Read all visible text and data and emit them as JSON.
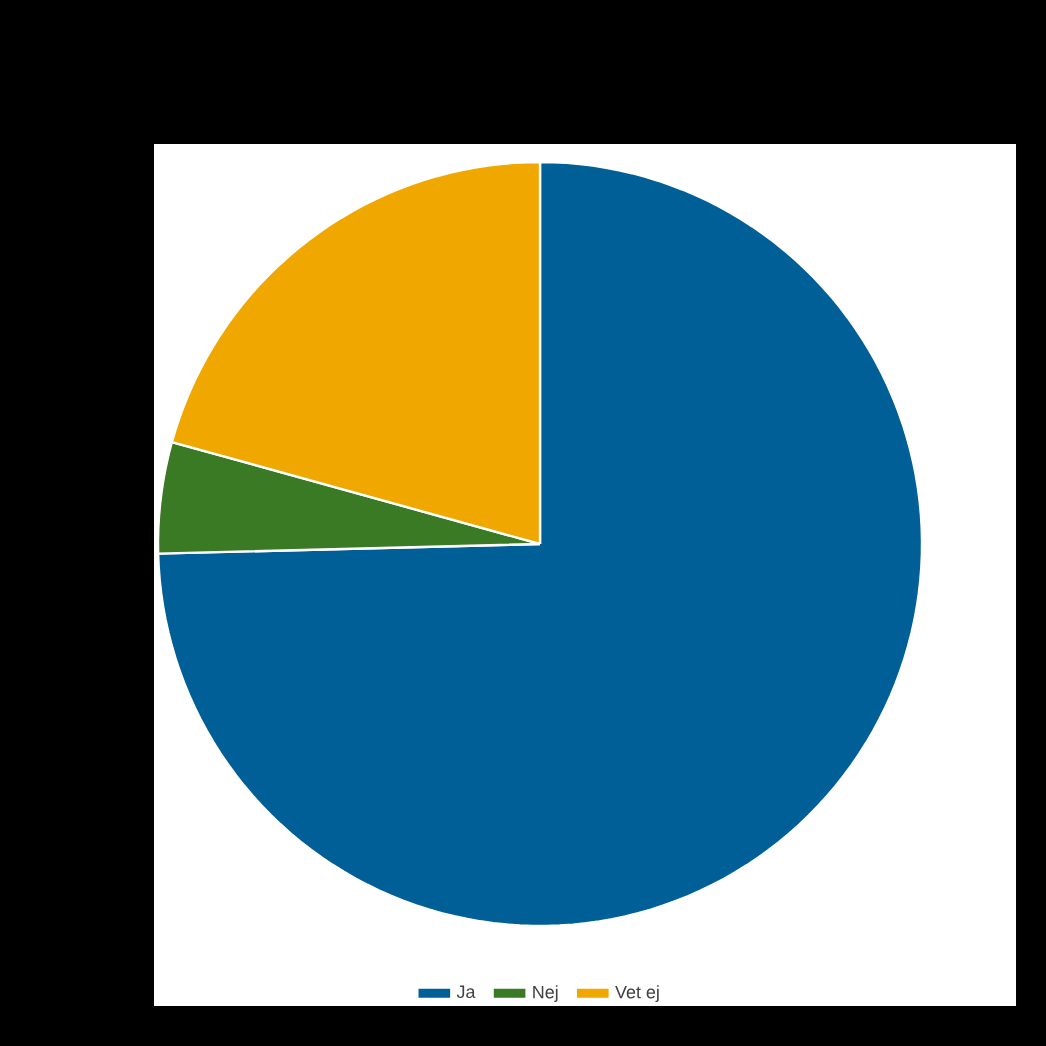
{
  "chart_data": {
    "type": "pie",
    "categories": [
      "Ja",
      "Nej",
      "Vet ej"
    ],
    "values": [
      74.6,
      4.7,
      20.7
    ],
    "colors": [
      "#005f96",
      "#3a7a24",
      "#f0a800"
    ],
    "legend": "bottom"
  }
}
